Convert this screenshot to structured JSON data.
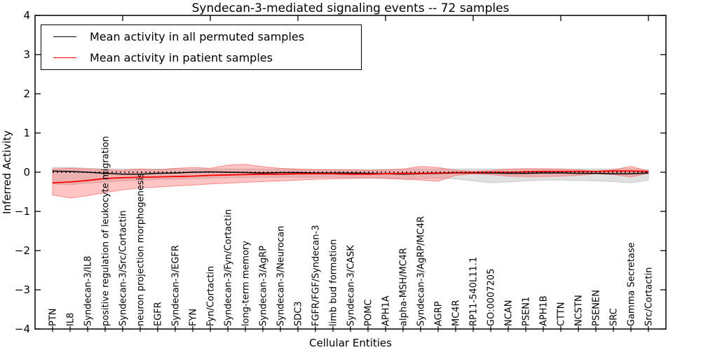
{
  "title": "Syndecan-3-mediated signaling events -- 72 samples",
  "legend": {
    "entries": [
      {
        "label": "Mean activity in all permuted samples",
        "color": "#000000"
      },
      {
        "label": "Mean activity in patient samples",
        "color": "#ff0000"
      }
    ],
    "position": "upper left"
  },
  "chart_data": {
    "type": "line",
    "title": "Syndecan-3-mediated signaling events -- 72 samples",
    "xlabel": "Cellular Entities",
    "ylabel": "Inferred Activity",
    "ylim": [
      -4,
      4
    ],
    "yticklabels": [
      "4",
      "3",
      "2",
      "1",
      "0",
      "−1",
      "−2",
      "−3",
      "−4"
    ],
    "ytickvalues": [
      4,
      3,
      2,
      1,
      0,
      -1,
      -2,
      -3,
      -4
    ],
    "grid": false,
    "zero_line": {
      "style": "dotted",
      "color": "#000000",
      "y": 0
    },
    "categories": [
      "PTN",
      "IL8",
      "Syndecan-3/IL8",
      "positive regulation of leukocyte migration",
      "Syndecan-3/Src/Cortactin",
      "neuron projection morphogenesis",
      "EGFR",
      "Syndecan-3/EGFR",
      "FYN",
      "Fyn/Cortactin",
      "Syndecan-3/Fyn/Cortactin",
      "long-term memory",
      "Syndecan-3/AgRP",
      "Syndecan-3/Neurocan",
      "SDC3",
      "FGFR/FGF/Syndecan-3",
      "limb bud formation",
      "Syndecan-3/CASK",
      "POMC",
      "APH1A",
      "alpha-MSH/MC4R",
      "Syndecan-3/AgRP/MC4R",
      "AGRP",
      "MC4R",
      "RP11-540L11.1",
      "GO:0007205",
      "NCAN",
      "PSEN1",
      "APH1B",
      "CTTN",
      "NCSTN",
      "PSENEN",
      "SRC",
      "Gamma Secretase",
      "Src/Cortactin"
    ],
    "series": [
      {
        "name": "Mean activity in all permuted samples",
        "color": "#000000",
        "band_color": "#bbbbbb",
        "band_opacity": 0.45,
        "values": [
          0.03,
          0.02,
          0.0,
          -0.03,
          -0.05,
          -0.05,
          -0.03,
          -0.02,
          0.0,
          0.01,
          0.0,
          -0.01,
          -0.02,
          -0.01,
          -0.01,
          -0.02,
          -0.02,
          -0.02,
          -0.03,
          -0.04,
          -0.05,
          -0.04,
          -0.03,
          -0.02,
          -0.02,
          -0.02,
          -0.03,
          -0.03,
          -0.02,
          -0.02,
          -0.03,
          -0.03,
          -0.04,
          -0.04,
          -0.02
        ],
        "band_upper": [
          0.12,
          0.12,
          0.1,
          0.09,
          0.08,
          0.08,
          0.08,
          0.08,
          0.08,
          0.08,
          0.08,
          0.08,
          0.08,
          0.08,
          0.07,
          0.07,
          0.07,
          0.07,
          0.07,
          0.07,
          0.08,
          0.08,
          0.08,
          0.08,
          0.08,
          0.08,
          0.08,
          0.08,
          0.08,
          0.08,
          0.08,
          0.08,
          0.08,
          0.09,
          0.06
        ],
        "band_lower": [
          -0.3,
          -0.32,
          -0.28,
          -0.25,
          -0.22,
          -0.2,
          -0.18,
          -0.18,
          -0.16,
          -0.15,
          -0.14,
          -0.14,
          -0.13,
          -0.13,
          -0.13,
          -0.13,
          -0.13,
          -0.14,
          -0.14,
          -0.15,
          -0.16,
          -0.16,
          -0.15,
          -0.17,
          -0.22,
          -0.27,
          -0.25,
          -0.22,
          -0.2,
          -0.2,
          -0.21,
          -0.22,
          -0.24,
          -0.27,
          -0.2
        ]
      },
      {
        "name": "Mean activity in patient samples",
        "color": "#ff0000",
        "band_color": "#ff5555",
        "band_opacity": 0.35,
        "values": [
          -0.27,
          -0.25,
          -0.21,
          -0.16,
          -0.14,
          -0.13,
          -0.12,
          -0.11,
          -0.1,
          -0.08,
          -0.07,
          -0.06,
          -0.05,
          -0.05,
          -0.04,
          -0.04,
          -0.04,
          -0.05,
          -0.05,
          -0.04,
          -0.03,
          -0.03,
          -0.02,
          -0.01,
          -0.01,
          0.0,
          0.0,
          0.01,
          0.02,
          0.02,
          0.02,
          0.02,
          0.03,
          0.03,
          0.02
        ],
        "band_upper": [
          0.08,
          0.1,
          0.08,
          0.06,
          0.05,
          0.08,
          0.06,
          0.1,
          0.12,
          0.1,
          0.18,
          0.2,
          0.14,
          0.1,
          0.08,
          0.07,
          0.06,
          0.06,
          0.05,
          0.06,
          0.08,
          0.15,
          0.12,
          0.05,
          0.02,
          0.04,
          0.08,
          0.09,
          0.09,
          0.08,
          0.06,
          0.03,
          0.06,
          0.15,
          0.03
        ],
        "band_lower": [
          -0.58,
          -0.66,
          -0.6,
          -0.52,
          -0.45,
          -0.4,
          -0.38,
          -0.35,
          -0.33,
          -0.3,
          -0.28,
          -0.26,
          -0.24,
          -0.22,
          -0.2,
          -0.18,
          -0.17,
          -0.16,
          -0.15,
          -0.16,
          -0.18,
          -0.2,
          -0.23,
          -0.08,
          -0.04,
          -0.06,
          -0.1,
          -0.11,
          -0.11,
          -0.1,
          -0.08,
          -0.04,
          -0.06,
          -0.12,
          -0.03
        ]
      }
    ],
    "n_points": 35,
    "top_tick_step": 5
  }
}
